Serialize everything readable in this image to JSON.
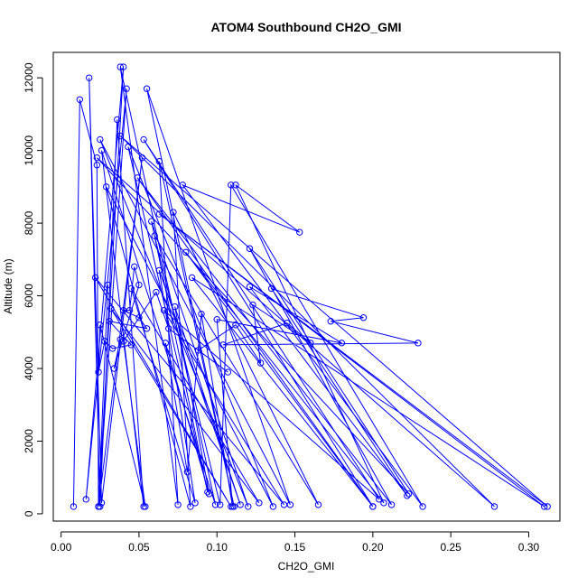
{
  "chart_data": {
    "type": "line",
    "title": "ATOM4 Southbound CH2O_GMI",
    "xlabel": "CH2O_GMI",
    "ylabel": "Altitude (m)",
    "xlim": [
      -0.005,
      0.32
    ],
    "ylim": [
      -200,
      12700
    ],
    "x_ticks": [
      0.0,
      0.05,
      0.1,
      0.15,
      0.2,
      0.25,
      0.3
    ],
    "x_tick_labels": [
      "0.00",
      "0.05",
      "0.10",
      "0.15",
      "0.20",
      "0.25",
      "0.30"
    ],
    "y_ticks": [
      0,
      2000,
      4000,
      6000,
      8000,
      10000,
      12000
    ],
    "y_tick_labels": [
      "0",
      "2000",
      "4000",
      "6000",
      "8000",
      "10000",
      "12000"
    ],
    "grid": false,
    "series_color": "#0000ff",
    "series": [
      {
        "marker": "open-circle",
        "points": [
          [
            0.008,
            200
          ],
          [
            0.012,
            11400
          ],
          [
            0.023,
            9600
          ],
          [
            0.024,
            200
          ],
          [
            0.03,
            6300
          ],
          [
            0.024,
            200
          ],
          [
            0.04,
            12300
          ],
          [
            0.016,
            400
          ],
          [
            0.042,
            11700
          ],
          [
            0.024,
            200
          ],
          [
            0.052,
            9800
          ],
          [
            0.026,
            300
          ],
          [
            0.018,
            12000
          ],
          [
            0.025,
            200
          ],
          [
            0.036,
            10850
          ],
          [
            0.053,
            200
          ],
          [
            0.026,
            10000
          ],
          [
            0.099,
            250
          ],
          [
            0.038,
            12300
          ],
          [
            0.075,
            250
          ],
          [
            0.063,
            9700
          ],
          [
            0.111,
            200
          ],
          [
            0.055,
            11700
          ],
          [
            0.147,
            250
          ],
          [
            0.025,
            10300
          ],
          [
            0.12,
            200
          ],
          [
            0.058,
            8050
          ],
          [
            0.094,
            600
          ],
          [
            0.043,
            10100
          ],
          [
            0.136,
            200
          ],
          [
            0.029,
            9000
          ],
          [
            0.083,
            200
          ],
          [
            0.072,
            8300
          ],
          [
            0.165,
            250
          ],
          [
            0.06,
            7650
          ],
          [
            0.102,
            250
          ],
          [
            0.109,
            9050
          ],
          [
            0.232,
            200
          ],
          [
            0.078,
            9050
          ],
          [
            0.153,
            7750
          ],
          [
            0.112,
            9050
          ],
          [
            0.207,
            300
          ],
          [
            0.08,
            7200
          ],
          [
            0.2,
            200
          ],
          [
            0.049,
            9250
          ],
          [
            0.212,
            250
          ],
          [
            0.121,
            7300
          ],
          [
            0.223,
            550
          ],
          [
            0.023,
            9800
          ],
          [
            0.278,
            200
          ],
          [
            0.038,
            10400
          ],
          [
            0.312,
            200
          ],
          [
            0.063,
            8250
          ],
          [
            0.31,
            200
          ],
          [
            0.084,
            6500
          ],
          [
            0.2,
            200
          ],
          [
            0.053,
            10300
          ],
          [
            0.204,
            400
          ],
          [
            0.066,
            5600
          ],
          [
            0.143,
            250
          ],
          [
            0.022,
            6500
          ],
          [
            0.109,
            200
          ],
          [
            0.032,
            5650
          ],
          [
            0.127,
            300
          ],
          [
            0.045,
            6200
          ],
          [
            0.086,
            300
          ],
          [
            0.063,
            6700
          ],
          [
            0.115,
            250
          ],
          [
            0.073,
            5700
          ],
          [
            0.095,
            550
          ],
          [
            0.067,
            4700
          ],
          [
            0.081,
            1150
          ],
          [
            0.09,
            5500
          ],
          [
            0.11,
            200
          ],
          [
            0.1,
            5350
          ],
          [
            0.18,
            4700
          ],
          [
            0.121,
            6250
          ],
          [
            0.222,
            500
          ],
          [
            0.135,
            6200
          ],
          [
            0.194,
            5400
          ],
          [
            0.173,
            5300
          ],
          [
            0.229,
            4700
          ],
          [
            0.104,
            4650
          ],
          [
            0.145,
            5250
          ],
          [
            0.16,
            4700
          ],
          [
            0.123,
            5750
          ],
          [
            0.128,
            4150
          ],
          [
            0.112,
            5200
          ],
          [
            0.088,
            4500
          ],
          [
            0.107,
            3900
          ],
          [
            0.069,
            5100
          ],
          [
            0.061,
            6100
          ],
          [
            0.04,
            4750
          ],
          [
            0.054,
            200
          ],
          [
            0.025,
            5200
          ],
          [
            0.024,
            3900
          ],
          [
            0.028,
            4750
          ],
          [
            0.033,
            4550
          ],
          [
            0.045,
            4650
          ],
          [
            0.031,
            5300
          ],
          [
            0.055,
            5100
          ],
          [
            0.05,
            5400
          ],
          [
            0.04,
            5600
          ],
          [
            0.044,
            5600
          ],
          [
            0.047,
            6800
          ],
          [
            0.05,
            6300
          ],
          [
            0.034,
            4000
          ],
          [
            0.038,
            4800
          ]
        ]
      }
    ]
  }
}
